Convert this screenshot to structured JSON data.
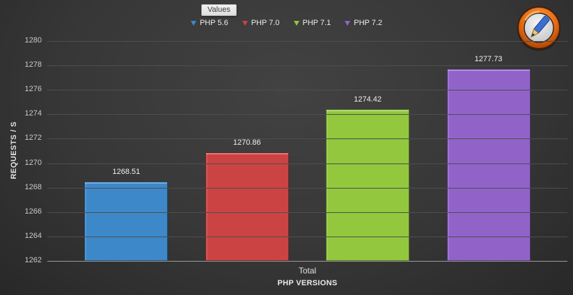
{
  "chart_data": {
    "type": "bar",
    "legend_title": "Values",
    "categories": [
      "Total"
    ],
    "series": [
      {
        "name": "PHP 5.6",
        "color": "#3d88c9",
        "values": [
          1268.51
        ]
      },
      {
        "name": "PHP 7.0",
        "color": "#cc4343",
        "values": [
          1270.86
        ]
      },
      {
        "name": "PHP 7.1",
        "color": "#92c73e",
        "values": [
          1274.42
        ]
      },
      {
        "name": "PHP 7.2",
        "color": "#9163c9",
        "values": [
          1277.73
        ]
      }
    ],
    "xlabel": "PHP VERSIONS",
    "ylabel": "REQUESTS / S",
    "ylim": [
      1262,
      1280
    ],
    "ytick_step": 2,
    "grid": true,
    "legend_position": "top"
  },
  "colors": {
    "background_center": "#424242",
    "background_edge": "#282828",
    "gridline": "#4e4e4e",
    "axis_line": "#9b9b9b",
    "tick_text": "#c9c9c9",
    "label_text": "#f0f0f0"
  },
  "logo": {
    "name": "pencil-badge"
  }
}
